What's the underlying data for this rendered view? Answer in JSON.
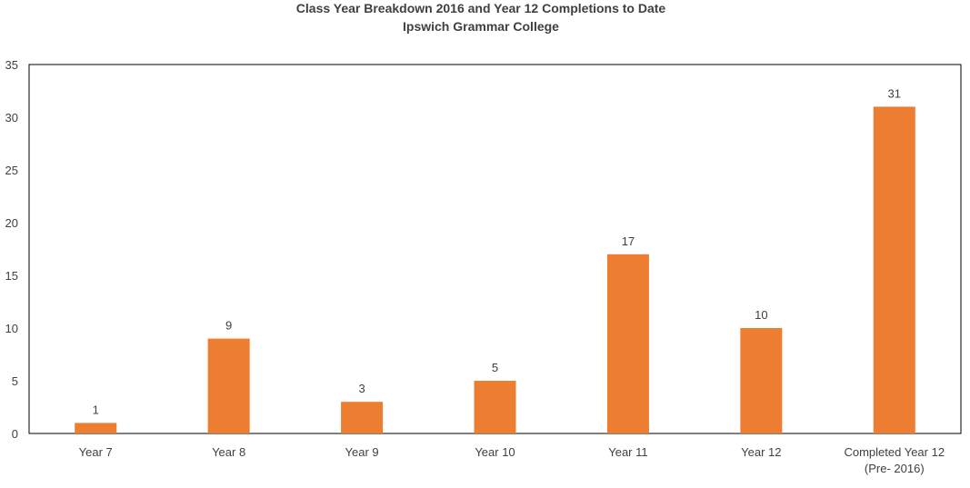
{
  "chart_data": {
    "type": "bar",
    "title": "Class Year Breakdown 2016 and Year 12 Completions to Date",
    "subtitle": "Ipswich Grammar College",
    "categories": [
      [
        "Year 7"
      ],
      [
        "Year 8"
      ],
      [
        "Year 9"
      ],
      [
        "Year 10"
      ],
      [
        "Year 11"
      ],
      [
        "Year 12"
      ],
      [
        "Completed Year 12",
        "(Pre- 2016)"
      ]
    ],
    "values": [
      1,
      9,
      3,
      5,
      17,
      10,
      31
    ],
    "ylim": [
      0,
      35
    ],
    "yticks": [
      "0",
      "5",
      "10",
      "15",
      "20",
      "25",
      "30",
      "35"
    ],
    "data_labels": true,
    "legend": "none",
    "grid": false,
    "colors": {
      "bar": "#ED7D31",
      "text": "#404040",
      "axis": "#000000"
    }
  }
}
